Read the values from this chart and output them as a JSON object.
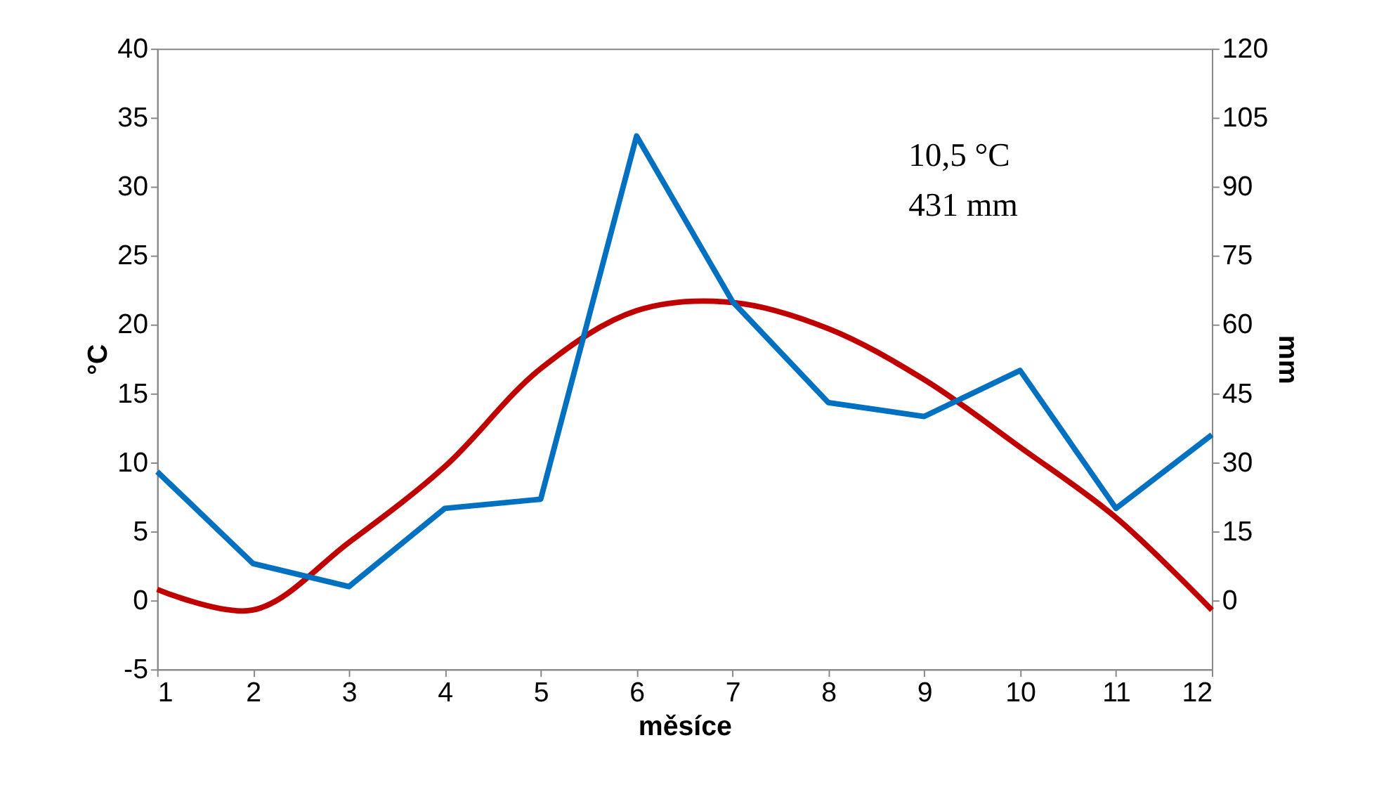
{
  "chart_data": {
    "type": "line",
    "xlabel": "měsíce",
    "ylabel": "°C",
    "y2label": "mm",
    "x": [
      1,
      2,
      3,
      4,
      5,
      6,
      7,
      8,
      9,
      10,
      11,
      12
    ],
    "series": [
      {
        "color": "#c00000",
        "values": [
          0.8,
          -0.7,
          4.2,
          9.7,
          16.8,
          21.0,
          21.6,
          19.7,
          16.0,
          11.1,
          6.0,
          -0.7
        ]
      },
      {
        "color": "#0070c0",
        "axis": "y2",
        "values": [
          28,
          8,
          3,
          20,
          22,
          101,
          65,
          43,
          40,
          50,
          20,
          36
        ]
      }
    ],
    "xlim": [
      1,
      12
    ],
    "xticks": [
      1,
      2,
      3,
      4,
      5,
      6,
      7,
      8,
      9,
      10,
      11,
      12
    ],
    "ylim": [
      -5,
      40
    ],
    "yticks": [
      -5,
      0,
      5,
      10,
      15,
      20,
      25,
      30,
      35,
      40
    ],
    "y2lim": [
      -15,
      120
    ],
    "y2ticks": [
      0,
      15,
      30,
      45,
      60,
      75,
      90,
      105,
      120
    ],
    "annotations": [
      "10,5 °C",
      "431 mm"
    ],
    "grid": false,
    "legend": false,
    "marker": "none",
    "line_style": "solid"
  }
}
